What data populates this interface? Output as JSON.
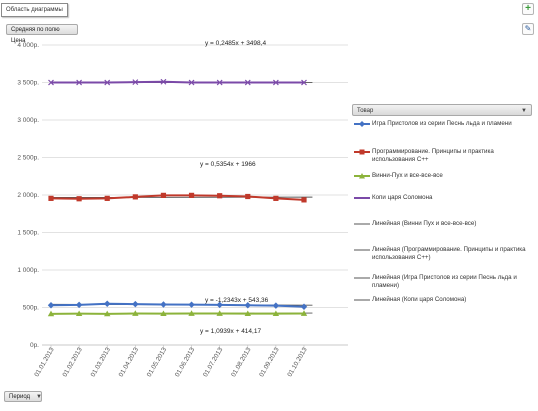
{
  "ui": {
    "tooltip": "Область диаграммы",
    "value_field_button": "Средняя по полю Цена",
    "legend_field_button": "Товар",
    "axis_field_button": "Период",
    "dropdown_glyph": "▼",
    "plus_glyph": "+",
    "brush_glyph": "✎"
  },
  "chart_data": {
    "type": "line",
    "x": [
      "01.01.2013",
      "01.02.2013",
      "01.03.2013",
      "01.04.2013",
      "01.05.2013",
      "01.06.2013",
      "01.07.2013",
      "01.08.2013",
      "01.09.2013",
      "01.10.2013"
    ],
    "ylim": [
      0,
      4000
    ],
    "yticks": [
      "0р.",
      "500р.",
      "1 000р.",
      "1 500р.",
      "2 000р.",
      "2 500р.",
      "3 000р.",
      "3 500р.",
      "4 000р."
    ],
    "grid": true,
    "legend_position": "right",
    "series": [
      {
        "name": "Игра Пристолов из серии Песнь льда и пламени",
        "color": "#4472c4",
        "marker": "diamond",
        "values": [
          530,
          535,
          550,
          545,
          540,
          538,
          535,
          530,
          525,
          510
        ]
      },
      {
        "name": "Программирование. Принципы и практика использования C++",
        "color": "#c0392b",
        "marker": "square",
        "values": [
          1955,
          1950,
          1955,
          1975,
          1995,
          1995,
          1990,
          1980,
          1955,
          1935
        ]
      },
      {
        "name": "Винни-Пух и все-все-все",
        "color": "#8cb33b",
        "marker": "triangle",
        "values": [
          415,
          418,
          415,
          420,
          418,
          420,
          420,
          418,
          418,
          420
        ]
      },
      {
        "name": "Копи царя Соломона",
        "color": "#7b4aa8",
        "marker": "x",
        "values": [
          3500,
          3500,
          3500,
          3505,
          3510,
          3500,
          3500,
          3500,
          3500,
          3500
        ]
      }
    ],
    "trendlines": [
      {
        "name": "Линейная (Винни Пух и все-все-все)",
        "slope": 1.0939,
        "intercept": 414.17,
        "equation": "y = 1,0939x + 414,17"
      },
      {
        "name": "Линейная (Программирование. Принципы и практика использования C++)",
        "slope": 0.5354,
        "intercept": 1966,
        "equation": "y = 0,5354x + 1966"
      },
      {
        "name": "Линейная (Игра Пристолов из серии Песнь льда и пламени)",
        "slope": -1.2343,
        "intercept": 543.36,
        "equation": "y = -1,2343x + 543,36"
      },
      {
        "name": "Линейная (Копи царя Соломона)",
        "slope": 0.2485,
        "intercept": 3498.4,
        "equation": "y = 0,2485x + 3498,4"
      }
    ]
  }
}
